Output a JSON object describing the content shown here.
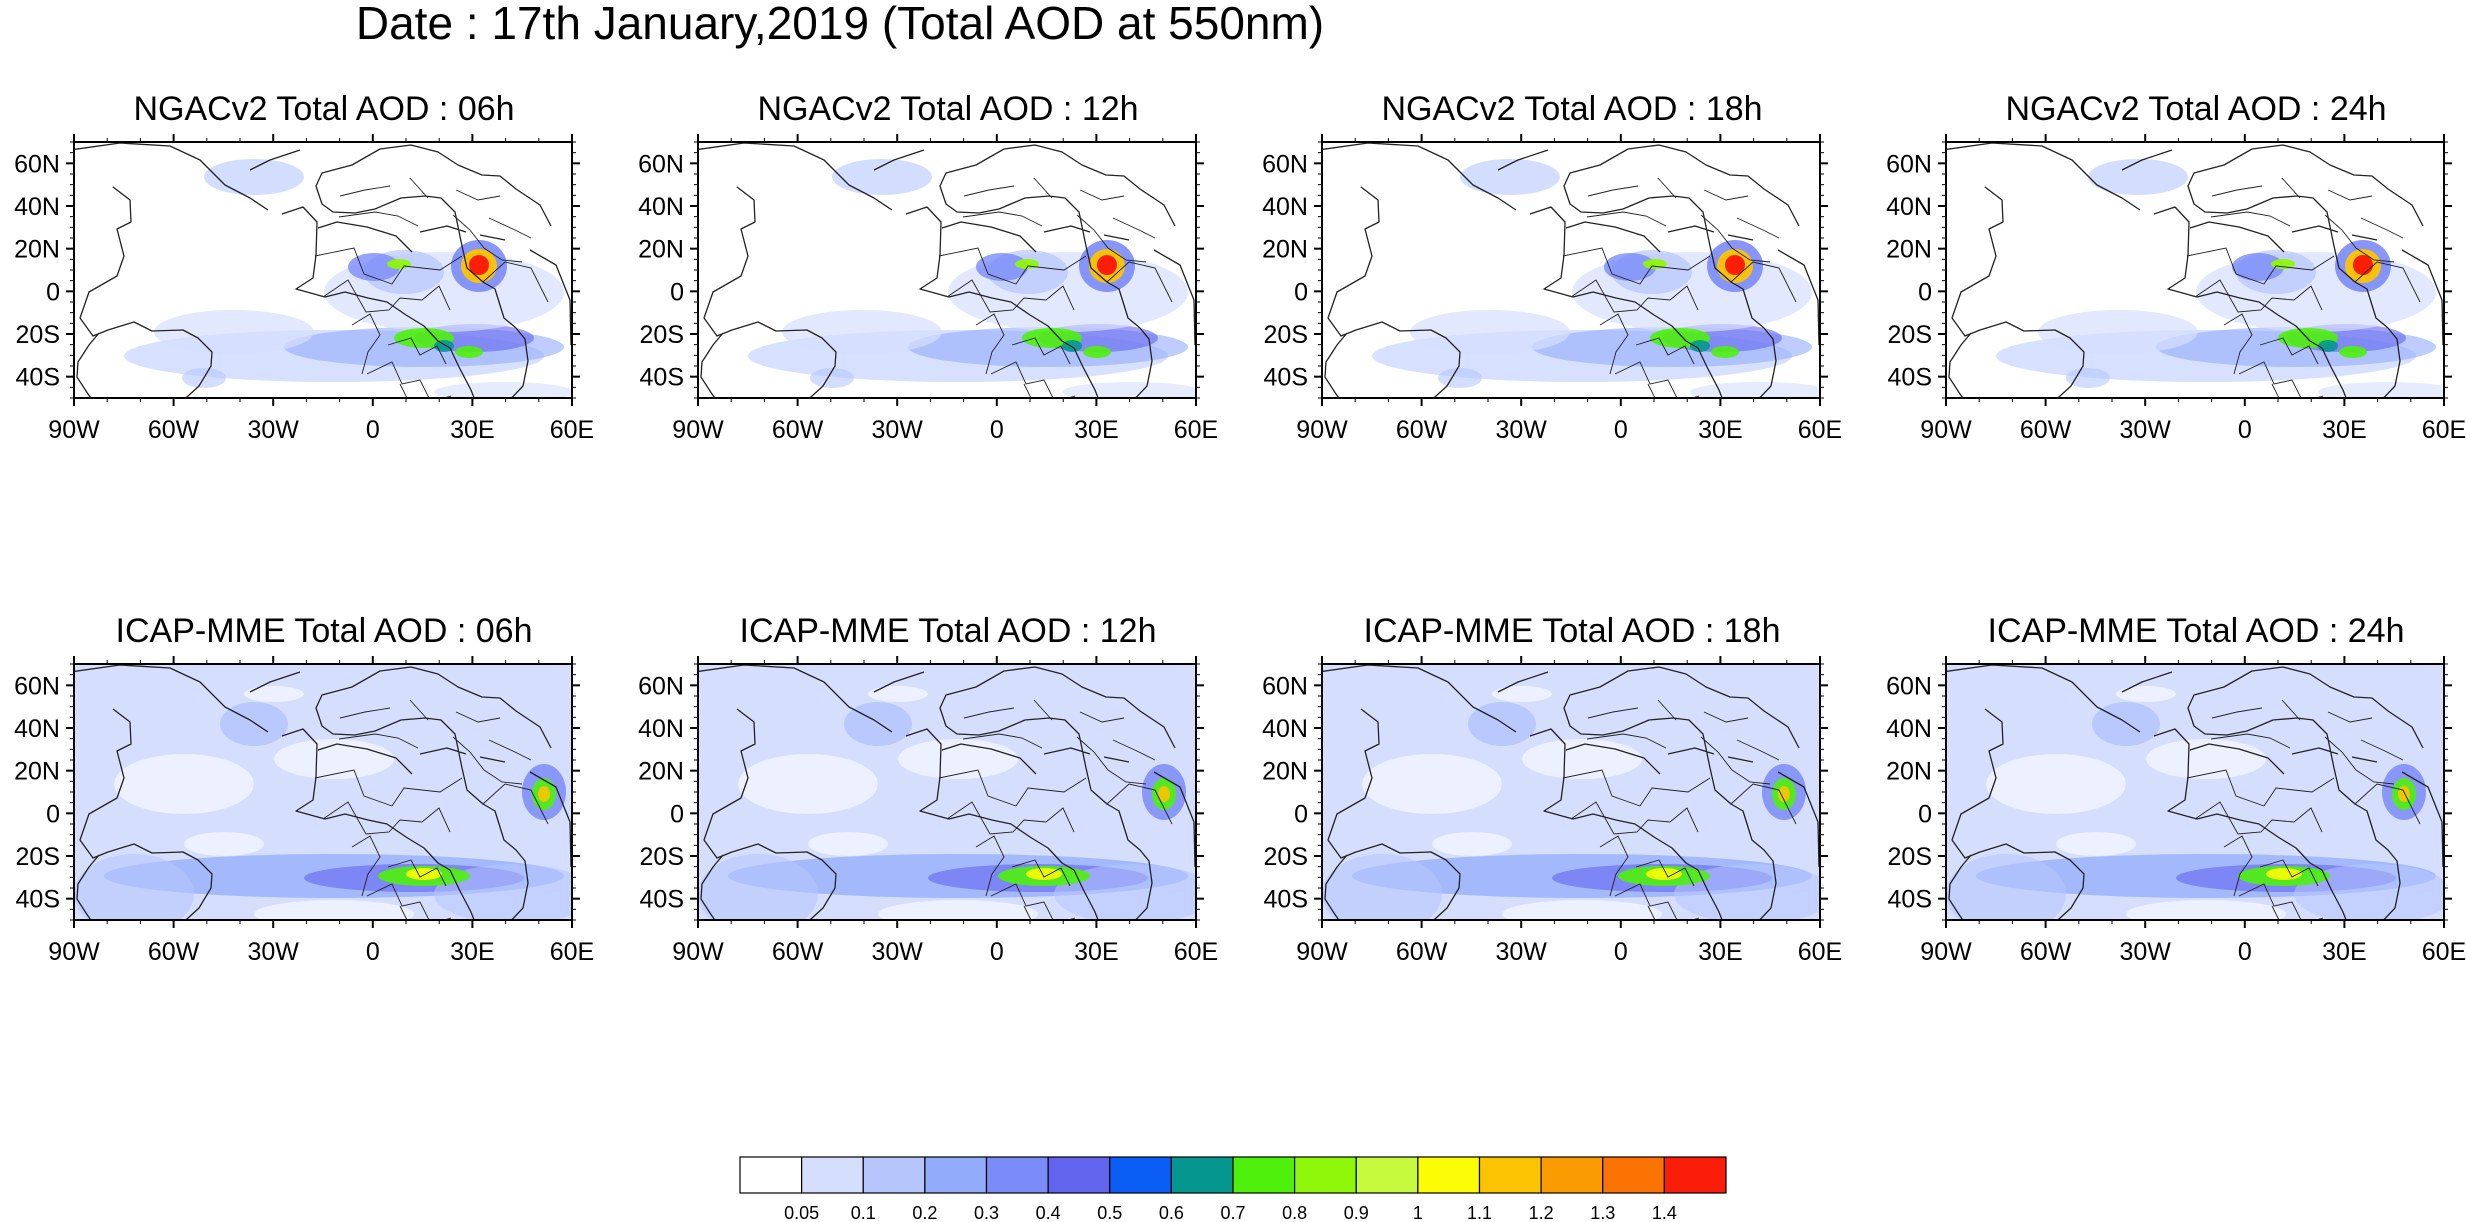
{
  "figure": {
    "title": "Date : 17th January,2019 (Total AOD at 550nm)",
    "variable": "Total AOD at 550nm",
    "date": "17th January,2019"
  },
  "panels": [
    {
      "title": "NGACv2 Total AOD : 06h",
      "model": "NGACv2",
      "lead": "06h"
    },
    {
      "title": "NGACv2 Total AOD : 12h",
      "model": "NGACv2",
      "lead": "12h"
    },
    {
      "title": "NGACv2 Total AOD : 18h",
      "model": "NGACv2",
      "lead": "18h"
    },
    {
      "title": "NGACv2 Total AOD : 24h",
      "model": "NGACv2",
      "lead": "24h"
    },
    {
      "title": "ICAP-MME Total AOD : 06h",
      "model": "ICAP-MME",
      "lead": "06h"
    },
    {
      "title": "ICAP-MME Total AOD : 12h",
      "model": "ICAP-MME",
      "lead": "12h"
    },
    {
      "title": "ICAP-MME Total AOD : 18h",
      "model": "ICAP-MME",
      "lead": "18h"
    },
    {
      "title": "ICAP-MME Total AOD : 24h",
      "model": "ICAP-MME",
      "lead": "24h"
    }
  ],
  "axes": {
    "lon_range": [
      -90,
      60
    ],
    "lat_range": [
      -50,
      70
    ],
    "lon_ticks": [
      {
        "value": -90,
        "label": "90W"
      },
      {
        "value": -60,
        "label": "60W"
      },
      {
        "value": -30,
        "label": "30W"
      },
      {
        "value": 0,
        "label": "0"
      },
      {
        "value": 30,
        "label": "30E"
      },
      {
        "value": 60,
        "label": "60E"
      }
    ],
    "lat_ticks": [
      {
        "value": 60,
        "label": "60N"
      },
      {
        "value": 40,
        "label": "40N"
      },
      {
        "value": 20,
        "label": "20N"
      },
      {
        "value": 0,
        "label": "0"
      },
      {
        "value": -20,
        "label": "20S"
      },
      {
        "value": -40,
        "label": "40S"
      }
    ]
  },
  "colorbar": {
    "colors": [
      "#ffffff",
      "#d6defe",
      "#b6c6fd",
      "#93abfb",
      "#7b8bf8",
      "#6264ee",
      "#0a5ef5",
      "#05978f",
      "#4ff10c",
      "#8ff70a",
      "#c5fa3d",
      "#fcfc07",
      "#fcc302",
      "#fb9b02",
      "#fb7302",
      "#fa1e08"
    ],
    "labels": [
      "0.05",
      "0.1",
      "0.2",
      "0.3",
      "0.4",
      "0.5",
      "0.6",
      "0.7",
      "0.8",
      "0.9",
      "1",
      "1.1",
      "1.2",
      "1.3",
      "1.4"
    ]
  }
}
